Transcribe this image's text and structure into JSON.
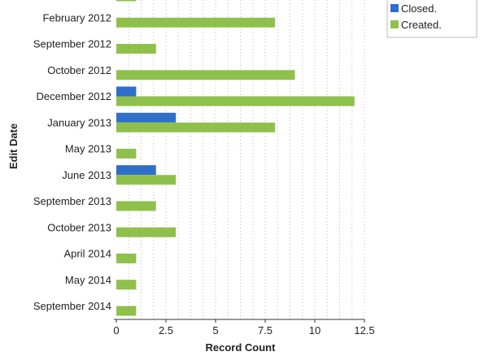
{
  "chart_data": {
    "type": "bar",
    "orientation": "horizontal",
    "categories": [
      "",
      "February 2012",
      "September 2012",
      "October 2012",
      "December 2012",
      "January 2013",
      "May 2013",
      "June 2013",
      "September 2013",
      "October 2013",
      "April 2014",
      "May 2014",
      "September 2014"
    ],
    "series": [
      {
        "name": "Closed.",
        "color": "#2f6fc9",
        "values": [
          0,
          0,
          0,
          0,
          1,
          3,
          0,
          2,
          0,
          0,
          0,
          0,
          0
        ]
      },
      {
        "name": "Created.",
        "color": "#8fc04c",
        "values": [
          1,
          8,
          2,
          9,
          12,
          8,
          1,
          3,
          2,
          3,
          1,
          1,
          1
        ]
      }
    ],
    "xlabel": "Record Count",
    "ylabel": "Edit Date",
    "xlim": [
      0,
      12.5
    ],
    "xticks": [
      0,
      2.5,
      5,
      7.5,
      10,
      12.5
    ],
    "grid": true,
    "legend": "top-right"
  }
}
